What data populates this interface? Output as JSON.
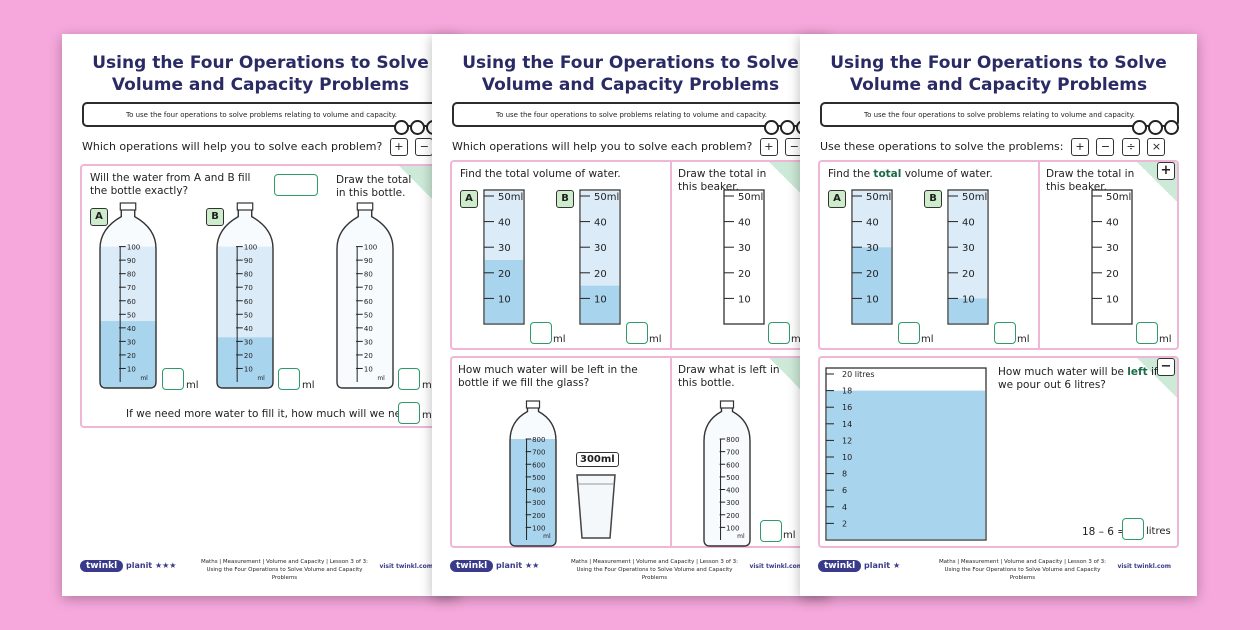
{
  "sheets": [
    {
      "title_line1": "Using the Four Operations to Solve",
      "title_line2": "Volume and Capacity Problems",
      "objective": "To use the four operations to solve problems relating to volume and capacity.",
      "ops_prompt": "Which operations will help you to solve each problem?",
      "ops": [
        "+",
        "−",
        "÷",
        "×"
      ],
      "q1": "Will the water from A and B fill the bottle exactly?",
      "draw": "Draw the total in this bottle.",
      "label_a": "A",
      "label_b": "B",
      "bottle_ticks": [
        "100",
        "90",
        "80",
        "70",
        "60",
        "50",
        "40",
        "30",
        "20",
        "10"
      ],
      "bottle_unit": "ml",
      "bottle_a_fill": 0.45,
      "bottle_b_fill": 0.33,
      "unit": "ml",
      "q2": "If we need more water to fill it, how much will we need?",
      "footer_text": "Maths | Measurement | Volume and Capacity | Lesson 3 of 3: Using the Four Operations to Solve Volume and Capacity Problems",
      "stars": "★★★"
    },
    {
      "title_line1": "Using the Four Operations to Solve",
      "title_line2": "Volume and Capacity Problems",
      "objective": "To use the four operations to solve problems relating to volume and capacity.",
      "ops_prompt": "Which operations will help you to solve each problem?",
      "ops": [
        "+",
        "−",
        "÷",
        "×"
      ],
      "q1": "Find the total volume of water.",
      "draw": "Draw the total in this beaker.",
      "label_a": "A",
      "label_b": "B",
      "cyl_ticks": [
        "50ml",
        "40",
        "30",
        "20",
        "10"
      ],
      "cyl_a_fill": 0.5,
      "cyl_b_fill": 0.3,
      "unit": "ml",
      "q2": "How much water will be left in the bottle if we fill the glass?",
      "draw2": "Draw what is left in this bottle.",
      "bottle_ticks": [
        "800",
        "700",
        "600",
        "500",
        "400",
        "300",
        "200",
        "100"
      ],
      "bottle_unit": "ml",
      "glass_label": "300ml",
      "footer_text": "Maths | Measurement | Volume and Capacity | Lesson 3 of 3: Using the Four Operations to Solve Volume and Capacity Problems",
      "stars": "★★"
    },
    {
      "title_line1": "Using the Four Operations to Solve",
      "title_line2": "Volume and Capacity Problems",
      "objective": "To use the four operations to solve problems relating to volume and capacity.",
      "ops_prompt": "Use these operations to solve the problems:",
      "ops": [
        "+",
        "−",
        "÷",
        "×"
      ],
      "q1_pre": "Find the ",
      "q1_word": "total",
      "q1_post": " volume of water.",
      "draw": "Draw the total in this beaker.",
      "label_a": "A",
      "label_b": "B",
      "cyl_ticks": [
        "50ml",
        "40",
        "30",
        "20",
        "10"
      ],
      "cyl_a_fill": 0.6,
      "cyl_b_fill": 0.2,
      "unit": "ml",
      "plus": "+",
      "minus": "−",
      "tank_ticks": [
        "20 litres",
        "18",
        "16",
        "14",
        "12",
        "10",
        "8",
        "6",
        "4",
        "2"
      ],
      "tank_fill": 0.9,
      "q2_pre": "How much water will be ",
      "q2_word": "left",
      "q2_post": " if we pour out 6 litres?",
      "equation": "18 – 6 =",
      "litres": "litres",
      "footer_text": "Maths | Measurement | Volume and Capacity | Lesson 3 of 3: Using the Four Operations to Solve Volume and Capacity Problems",
      "stars": "★"
    }
  ],
  "brand": "twinkl",
  "planit": "planit",
  "visit": "visit twinkl.com",
  "colors": {
    "water": "#a9d4ee",
    "water_light": "#dcebf8",
    "title": "#2a2a64",
    "panel_border": "#f0b6d6",
    "label_bg": "#cdeccb",
    "background": "#f6a8dc"
  }
}
